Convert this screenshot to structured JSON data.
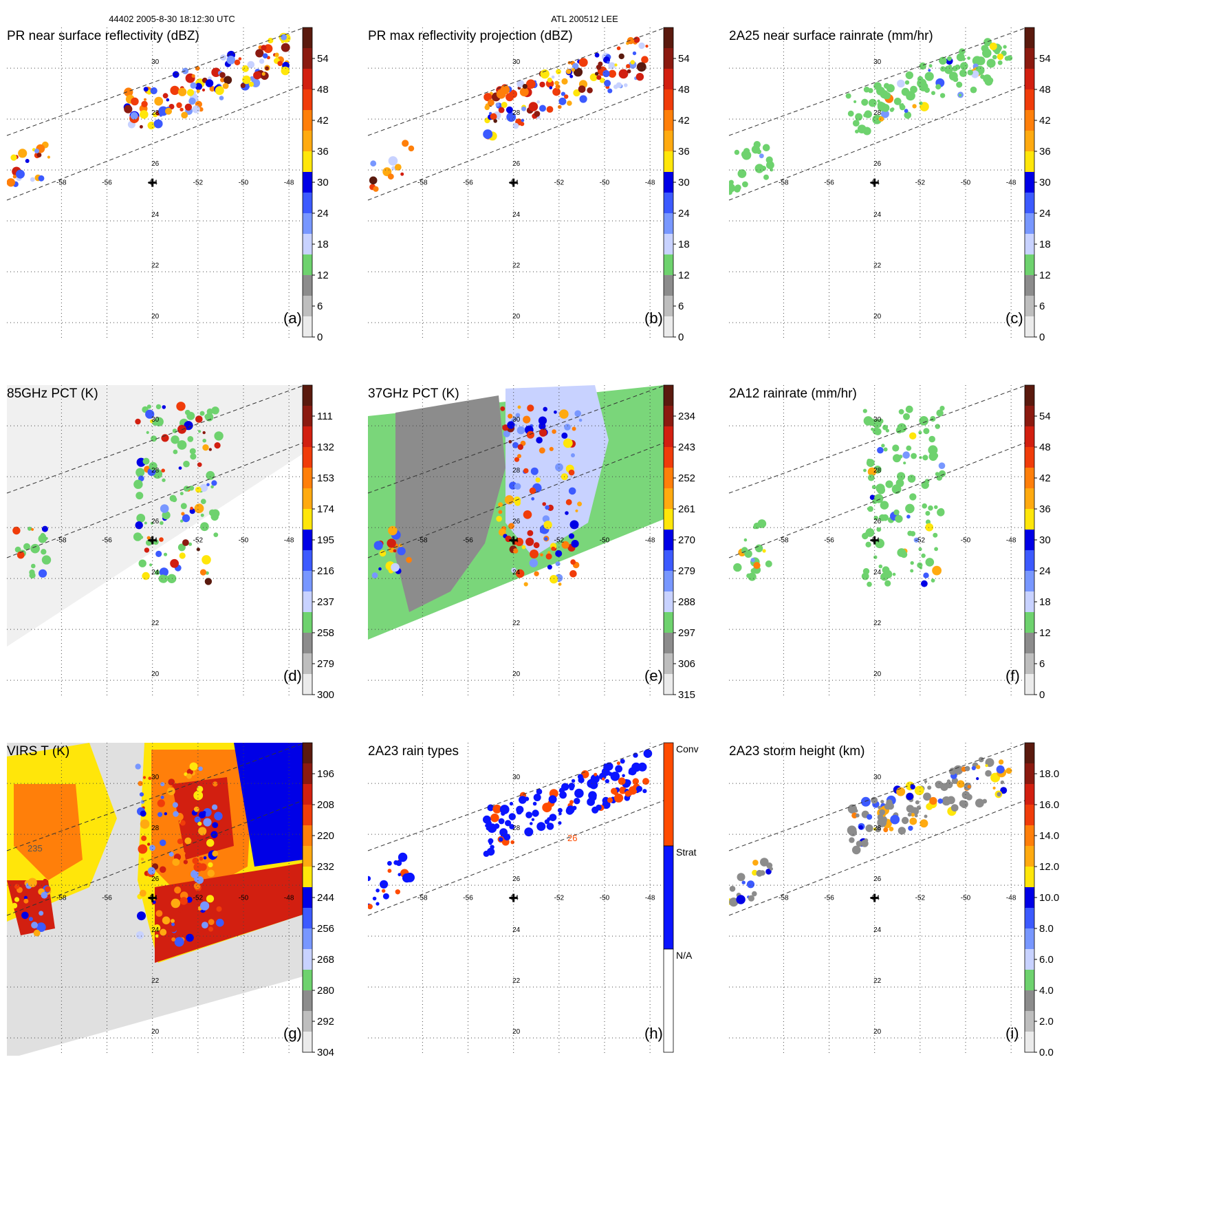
{
  "header": {
    "orbit_time": "44402 2005-8-30 18:12:30 UTC",
    "storm": "ATL 200512 LEE"
  },
  "chart_data": {
    "type": "multi-panel satellite map",
    "lon_ticks": [
      -58,
      -56,
      -54,
      -52,
      -50,
      -48
    ],
    "lat_ticks": [
      20,
      22,
      24,
      26,
      28,
      30
    ],
    "lon_range": [
      -60,
      -47
    ],
    "lat_range": [
      19,
      32
    ],
    "storm_center": {
      "lon": -54,
      "lat": 25.5
    },
    "panels": [
      {
        "id": "a",
        "letter": "(a)",
        "title": "PR near surface reflectivity (dBZ)",
        "field": "swath",
        "colorbar": {
          "labels": [
            "54",
            "48",
            "42",
            "36",
            "30",
            "24",
            "18",
            "12",
            "6",
            "0"
          ]
        }
      },
      {
        "id": "b",
        "letter": "(b)",
        "title": "PR max reflectivity projection (dBZ)",
        "field": "swath",
        "colorbar": {
          "labels": [
            "54",
            "48",
            "42",
            "36",
            "30",
            "24",
            "18",
            "12",
            "6",
            "0"
          ]
        }
      },
      {
        "id": "c",
        "letter": "(c)",
        "title": "2A25 near surface rainrate (mm/hr)",
        "field": "swath_rain",
        "colorbar": {
          "labels": [
            "54",
            "48",
            "42",
            "36",
            "30",
            "24",
            "18",
            "12",
            "6",
            "0"
          ]
        }
      },
      {
        "id": "d",
        "letter": "(d)",
        "title": "85GHz PCT (K)",
        "field": "tmi_gray",
        "colorbar": {
          "labels": [
            "111",
            "132",
            "153",
            "174",
            "195",
            "216",
            "237",
            "258",
            "279",
            "300"
          ]
        }
      },
      {
        "id": "e",
        "letter": "(e)",
        "title": "37GHz PCT (K)",
        "field": "tmi_green",
        "colorbar": {
          "labels": [
            "234",
            "243",
            "252",
            "261",
            "270",
            "279",
            "288",
            "297",
            "306",
            "315"
          ]
        }
      },
      {
        "id": "f",
        "letter": "(f)",
        "title": "2A12 rainrate (mm/hr)",
        "field": "tmi_rain",
        "colorbar": {
          "labels": [
            "54",
            "48",
            "42",
            "36",
            "30",
            "24",
            "18",
            "12",
            "6",
            "0"
          ]
        }
      },
      {
        "id": "g",
        "letter": "(g)",
        "title": "VIRS T   (K)",
        "field": "virs",
        "annotation": "235",
        "colorbar": {
          "labels": [
            "196",
            "208",
            "220",
            "232",
            "244",
            "256",
            "268",
            "280",
            "292",
            "304"
          ]
        }
      },
      {
        "id": "h",
        "letter": "(h)",
        "title": "2A23 rain types",
        "field": "raintype",
        "annotation": "26",
        "colorbar": {
          "type": "categorical",
          "labels": [
            "Conv",
            "Strat",
            "N/A"
          ]
        }
      },
      {
        "id": "i",
        "letter": "(i)",
        "title": "2A23 storm height (km)",
        "field": "height",
        "colorbar": {
          "labels": [
            "18.0",
            "16.0",
            "14.0",
            "12.0",
            "10.0",
            "8.0",
            "6.0",
            "4.0",
            "2.0",
            "0.0"
          ]
        }
      }
    ]
  },
  "colors": {
    "colorbar_segments": [
      "#5a1a0e",
      "#8b1a10",
      "#d21f10",
      "#f03c0a",
      "#ff7f0a",
      "#ffaa10",
      "#ffe60a",
      "#0000e6",
      "#3c5aff",
      "#7897ff",
      "#c8d2ff",
      "#6ed26e",
      "#8c8c8c",
      "#bebebe",
      "#ebebeb"
    ],
    "rain_types": {
      "Conv": "#ff4b00",
      "Strat": "#0a14ff",
      "N/A": "#ffffff"
    }
  }
}
